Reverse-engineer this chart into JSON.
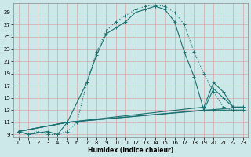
{
  "xlabel": "Humidex (Indice chaleur)",
  "bg_color": "#cce8e8",
  "grid_color": "#b8d8d8",
  "line_color": "#1a7070",
  "xlim": [
    -0.5,
    23.5
  ],
  "ylim": [
    8.5,
    30.5
  ],
  "xticks": [
    0,
    1,
    2,
    3,
    4,
    5,
    6,
    7,
    8,
    9,
    10,
    11,
    12,
    13,
    14,
    15,
    16,
    17,
    18,
    19,
    20,
    21,
    22,
    23
  ],
  "yticks": [
    9,
    11,
    13,
    15,
    17,
    19,
    21,
    23,
    25,
    27,
    29
  ],
  "curve_dotted_x": [
    0,
    1,
    2,
    3,
    4,
    5,
    6,
    7,
    8,
    9,
    10,
    11,
    12,
    13,
    14,
    15,
    16,
    17,
    18,
    19,
    20,
    21,
    22,
    23
  ],
  "curve_dotted_y": [
    9.5,
    9.0,
    9.5,
    9.0,
    9.0,
    9.5,
    11.0,
    17.5,
    22.5,
    26.0,
    27.5,
    28.5,
    29.5,
    30.0,
    30.2,
    30.0,
    29.0,
    27.0,
    22.5,
    19.0,
    16.0,
    13.5,
    13.0,
    13.0
  ],
  "curve1_x": [
    0,
    1,
    3,
    4,
    5,
    7,
    8,
    9,
    10,
    11,
    12,
    13,
    14,
    15,
    16,
    17,
    18,
    19,
    20,
    21,
    22,
    23
  ],
  "curve1_y": [
    9.5,
    9.0,
    9.5,
    9.0,
    11.0,
    17.5,
    22.0,
    25.5,
    26.5,
    27.5,
    29.0,
    29.5,
    30.0,
    29.5,
    27.5,
    22.5,
    18.5,
    13.0,
    13.0,
    13.0,
    13.0,
    13.0
  ],
  "curve2_x": [
    0,
    5,
    23
  ],
  "curve2_y": [
    9.5,
    11.0,
    13.5
  ],
  "curve3_x": [
    0,
    5,
    19,
    20,
    21,
    22,
    23
  ],
  "curve3_y": [
    9.5,
    11.0,
    13.0,
    16.5,
    15.0,
    13.5,
    13.5
  ],
  "curve4_x": [
    0,
    5,
    19,
    20,
    21,
    22,
    23
  ],
  "curve4_y": [
    9.5,
    11.0,
    13.5,
    17.5,
    16.0,
    13.5,
    13.5
  ]
}
